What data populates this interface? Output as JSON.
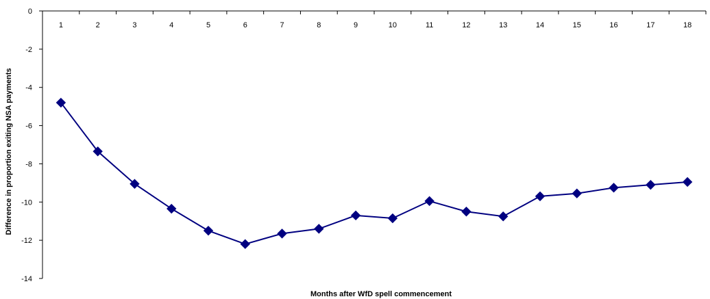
{
  "chart_data": {
    "type": "line",
    "title": "",
    "xlabel": "Months after WfD spell commencement",
    "ylabel": "Difference in proportion exiting NSA payments",
    "categories": [
      "1",
      "2",
      "3",
      "4",
      "5",
      "6",
      "7",
      "8",
      "9",
      "10",
      "11",
      "12",
      "13",
      "14",
      "15",
      "16",
      "17",
      "18"
    ],
    "series": [
      {
        "values": [
          -4.8,
          -7.35,
          -9.05,
          -10.35,
          -11.5,
          -12.2,
          -11.65,
          -11.4,
          -10.7,
          -10.85,
          -9.95,
          -10.5,
          -10.75,
          -9.7,
          -9.55,
          -9.25,
          -9.1,
          -8.95
        ],
        "color": "#000080"
      }
    ],
    "ylim": [
      -14,
      0
    ],
    "yticks": [
      "0",
      "-2",
      "-4",
      "-6",
      "-8",
      "-10",
      "-12",
      "-14"
    ],
    "ytick_values": [
      0,
      -2,
      -4,
      -6,
      -8,
      -10,
      -12,
      -14
    ],
    "grid": false,
    "legend": "none",
    "axis_color": "#000000"
  }
}
